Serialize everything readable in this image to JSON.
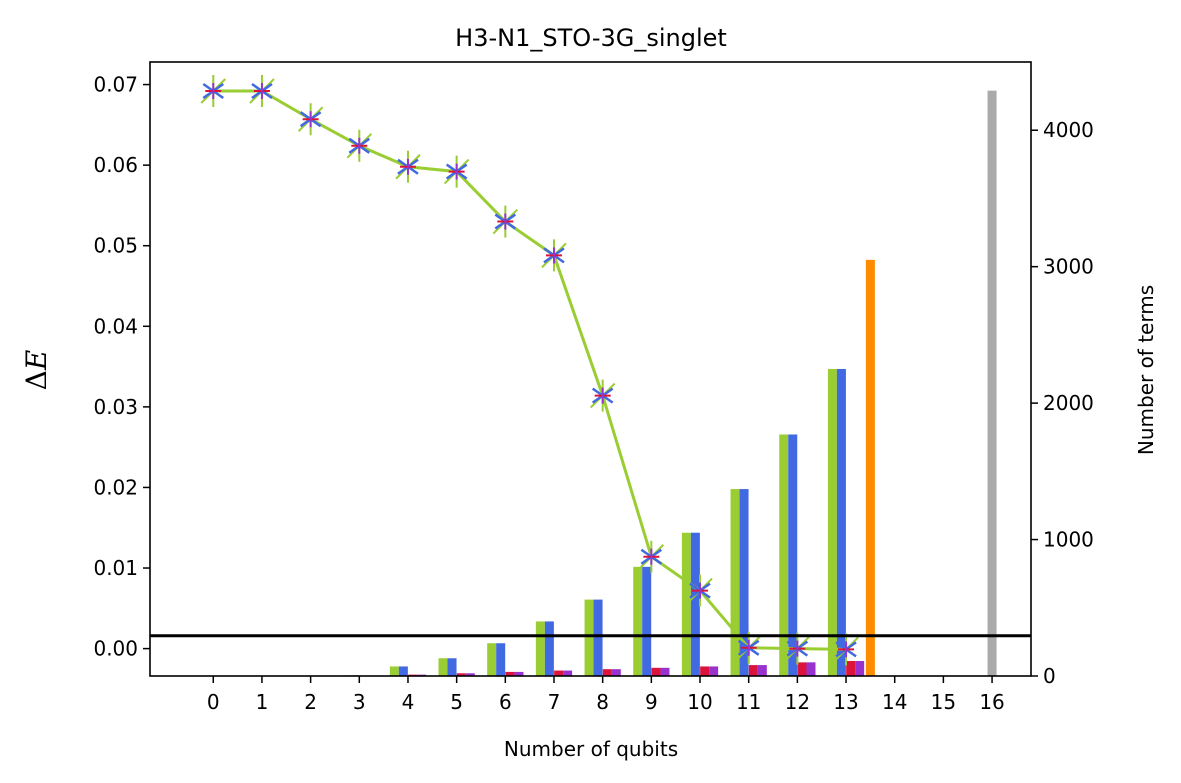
{
  "chart_data": {
    "type": "bar",
    "title": "H3-N1_STO-3G_singlet",
    "xlabel": "Number of qubits",
    "ylabel_left_prefix": "Δ",
    "ylabel_left_var": "E",
    "ylabel_right": "Number of terms",
    "x_ticks": [
      0,
      1,
      2,
      3,
      4,
      5,
      6,
      7,
      8,
      9,
      10,
      11,
      12,
      13,
      14,
      15,
      16
    ],
    "y_left_lim": [
      -0.0034,
      0.0728
    ],
    "y_left_ticks": [
      0.0,
      0.01,
      0.02,
      0.03,
      0.04,
      0.05,
      0.06,
      0.07
    ],
    "y_left_tick_labels": [
      "0.00",
      "0.01",
      "0.02",
      "0.03",
      "0.04",
      "0.05",
      "0.06",
      "0.07"
    ],
    "y_right_lim": [
      0,
      4500
    ],
    "y_right_ticks": [
      0,
      1000,
      2000,
      3000,
      4000
    ],
    "y_right_tick_labels": [
      "0",
      "1000",
      "2000",
      "3000",
      "4000"
    ],
    "threshold_line": 0.0016,
    "energy_line": {
      "x": [
        0,
        1,
        2,
        3,
        4,
        5,
        6,
        7,
        8,
        9,
        10,
        11,
        12,
        13
      ],
      "y": [
        0.0692,
        0.0692,
        0.0657,
        0.0624,
        0.0598,
        0.0592,
        0.053,
        0.0488,
        0.0314,
        0.0114,
        0.0072,
        0.0001,
        0.0,
        -0.0001
      ],
      "color": "#9acd32"
    },
    "bar_series": [
      {
        "color": "#9acd32",
        "x": [
          3,
          4,
          5,
          6,
          7,
          8,
          9,
          10,
          11,
          12,
          13
        ],
        "values": [
          5,
          70,
          130,
          240,
          400,
          560,
          800,
          1050,
          1370,
          1770,
          2250
        ]
      },
      {
        "color": "#4169e1",
        "x": [
          3,
          4,
          5,
          6,
          7,
          8,
          9,
          10,
          11,
          12,
          13
        ],
        "values": [
          5,
          70,
          130,
          240,
          400,
          560,
          800,
          1050,
          1370,
          1770,
          2250
        ]
      },
      {
        "color": "#dc143c",
        "x": [
          4,
          5,
          6,
          7,
          8,
          9,
          10,
          11,
          12,
          13
        ],
        "values": [
          10,
          20,
          30,
          40,
          50,
          60,
          70,
          80,
          100,
          110
        ]
      },
      {
        "color": "#9932cc",
        "x": [
          4,
          5,
          6,
          7,
          8,
          9,
          10,
          11,
          12,
          13
        ],
        "values": [
          10,
          20,
          30,
          40,
          50,
          60,
          70,
          80,
          100,
          110
        ]
      }
    ],
    "full_bars": [
      {
        "x": 13.5,
        "value": 3050,
        "color": "#ff8c00"
      },
      {
        "x": 16,
        "value": 4290,
        "color": "#aaaaaa"
      }
    ]
  }
}
